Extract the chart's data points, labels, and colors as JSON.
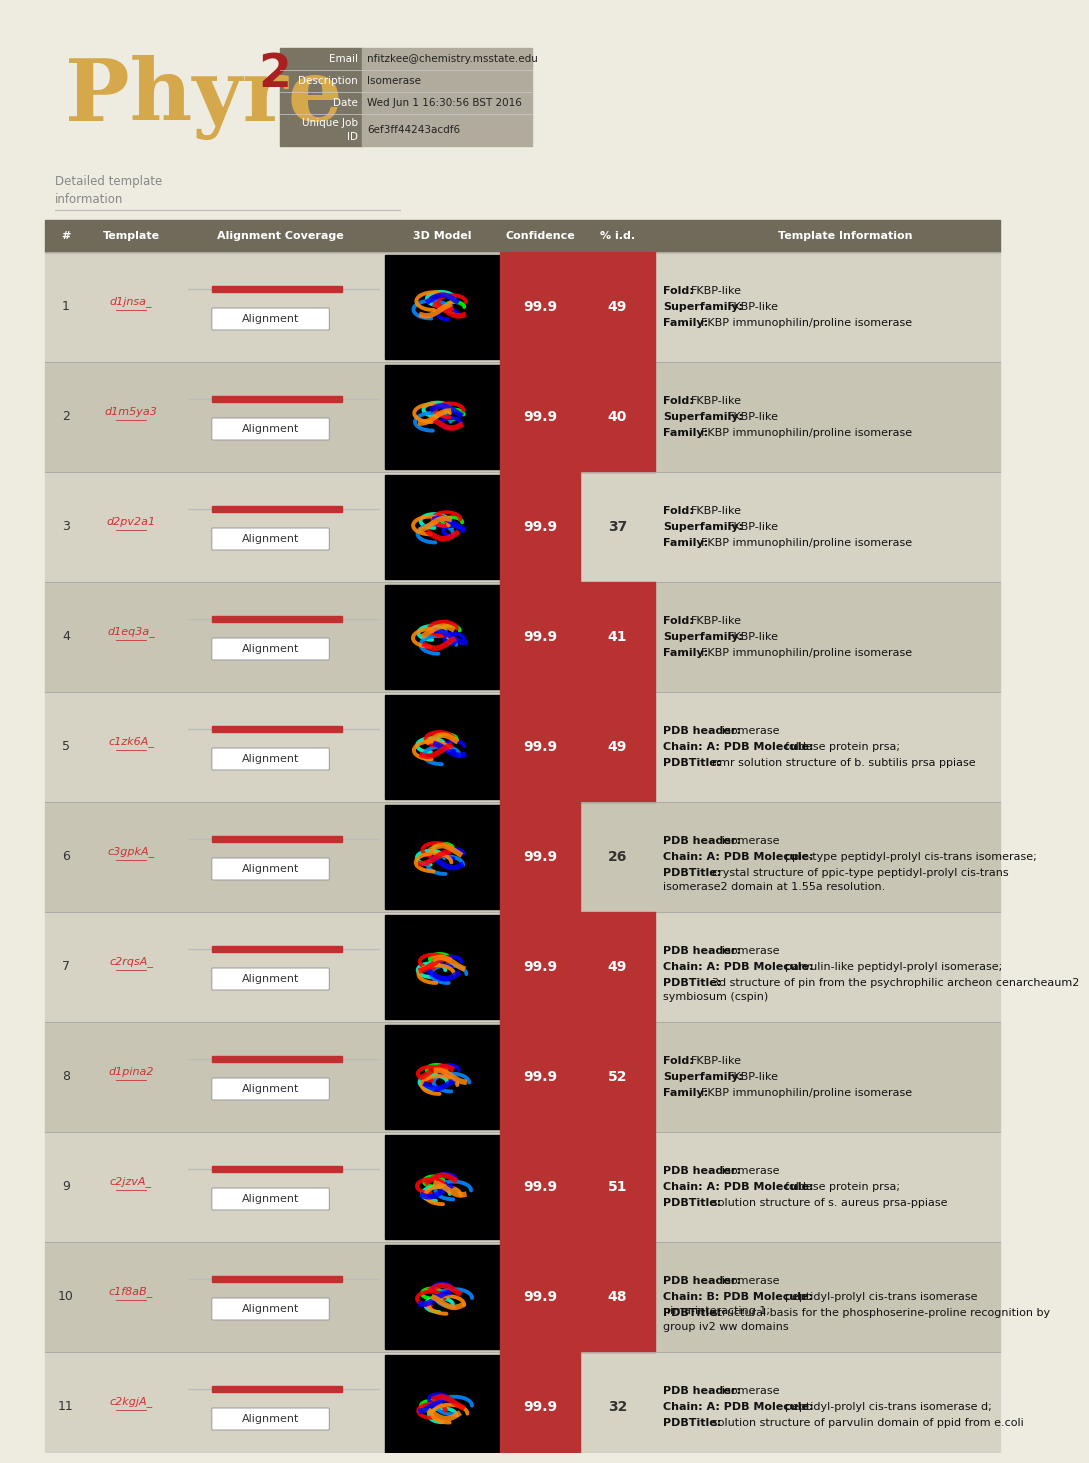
{
  "bg_color": "#eeebe0",
  "header_bg": "#eeebe0",
  "row_bg_odd": "#d6d2c4",
  "row_bg_even": "#c9c5b5",
  "header_row_bg": "#706a5a",
  "confidence_bg": "#b83232",
  "pid_bg_red": "#b83232",
  "phyre_color": "#d4a84b",
  "two_color": "#a82020",
  "info_label_bg": "#7a7465",
  "info_value_bg": "#b0ab9c",
  "email_label": "Email",
  "email_value": "nfitzkee@chemistry.msstate.edu",
  "desc_label": "Description",
  "desc_value": "Isomerase",
  "date_label": "Date",
  "date_value": "Wed Jun 1 16:30:56 BST 2016",
  "job_value": "6ef3ff44243acdf6",
  "col_headers": [
    "#",
    "Template",
    "Alignment Coverage",
    "3D Model",
    "Confidence",
    "% i.d.",
    "Template Information"
  ],
  "rows": [
    {
      "num": "1",
      "template": "d1jnsa_",
      "confidence": "99.9",
      "pid": "49",
      "pid_red": true,
      "info_lines": [
        {
          "label": "Fold:",
          "text": "FKBP-like"
        },
        {
          "label": "Superfamily:",
          "text": "FKBP-like"
        },
        {
          "label": "Family:",
          "text": "FKBP immunophilin/proline isomerase"
        }
      ]
    },
    {
      "num": "2",
      "template": "d1m5ya3",
      "confidence": "99.9",
      "pid": "40",
      "pid_red": true,
      "info_lines": [
        {
          "label": "Fold:",
          "text": "FKBP-like"
        },
        {
          "label": "Superfamily:",
          "text": "FKBP-like"
        },
        {
          "label": "Family:",
          "text": "FKBP immunophilin/proline isomerase"
        }
      ]
    },
    {
      "num": "3",
      "template": "d2pv2a1",
      "confidence": "99.9",
      "pid": "37",
      "pid_red": false,
      "info_lines": [
        {
          "label": "Fold:",
          "text": "FKBP-like"
        },
        {
          "label": "Superfamily:",
          "text": "FKBP-like"
        },
        {
          "label": "Family:",
          "text": "FKBP immunophilin/proline isomerase"
        }
      ]
    },
    {
      "num": "4",
      "template": "d1eq3a_",
      "confidence": "99.9",
      "pid": "41",
      "pid_red": true,
      "info_lines": [
        {
          "label": "Fold:",
          "text": "FKBP-like"
        },
        {
          "label": "Superfamily:",
          "text": "FKBP-like"
        },
        {
          "label": "Family:",
          "text": "FKBP immunophilin/proline isomerase"
        }
      ]
    },
    {
      "num": "5",
      "template": "c1zk6A_",
      "confidence": "99.9",
      "pid": "49",
      "pid_red": true,
      "info_lines": [
        {
          "label": "PDB header:",
          "text": "isomerase"
        },
        {
          "label": "Chain: A: PDB Molecule:",
          "text": "foldase protein prsa;"
        },
        {
          "label": "PDBTitle:",
          "text": "nmr solution structure of b. subtilis prsa ppiase"
        }
      ]
    },
    {
      "num": "6",
      "template": "c3gpkA_",
      "confidence": "99.9",
      "pid": "26",
      "pid_red": false,
      "info_lines": [
        {
          "label": "PDB header:",
          "text": "isomerase"
        },
        {
          "label": "Chain: A: PDB Molecule:",
          "text": "ppic-type peptidyl-prolyl cis-trans isomerase;"
        },
        {
          "label": "PDBTitle:",
          "text": "crystal structure of ppic-type peptidyl-prolyl cis-trans isomerase2 domain at 1.55a resolution."
        }
      ]
    },
    {
      "num": "7",
      "template": "c2rqsA_",
      "confidence": "99.9",
      "pid": "49",
      "pid_red": true,
      "info_lines": [
        {
          "label": "PDB header:",
          "text": "isomerase"
        },
        {
          "label": "Chain: A: PDB Molecule:",
          "text": "parvulin-like peptidyl-prolyl isomerase;"
        },
        {
          "label": "PDBTitle:",
          "text": "3d structure of pin from the psychrophilic archeon cenarcheaum2 symbiosum (cspin)"
        }
      ]
    },
    {
      "num": "8",
      "template": "d1pina2",
      "confidence": "99.9",
      "pid": "52",
      "pid_red": true,
      "info_lines": [
        {
          "label": "Fold:",
          "text": "FKBP-like"
        },
        {
          "label": "Superfamily:",
          "text": "FKBP-like"
        },
        {
          "label": "Family:",
          "text": "FKBP immunophilin/proline isomerase"
        }
      ]
    },
    {
      "num": "9",
      "template": "c2jzvA_",
      "confidence": "99.9",
      "pid": "51",
      "pid_red": true,
      "info_lines": [
        {
          "label": "PDB header:",
          "text": "isomerase"
        },
        {
          "label": "Chain: A: PDB Molecule:",
          "text": "foldase protein prsa;"
        },
        {
          "label": "PDBTitle:",
          "text": "solution structure of s. aureus prsa-ppiase"
        }
      ]
    },
    {
      "num": "10",
      "template": "c1f8aB_",
      "confidence": "99.9",
      "pid": "48",
      "pid_red": true,
      "info_lines": [
        {
          "label": "PDB header:",
          "text": "isomerase"
        },
        {
          "label": "Chain: B: PDB Molecule:",
          "text": "peptidyl-prolyl cis-trans isomerase nima-interacting 1;"
        },
        {
          "label": "PDBTitle:",
          "text": "structural basis for the phosphoserine-proline recognition by group iv2 ww domains"
        }
      ]
    },
    {
      "num": "11",
      "template": "c2kgjA_",
      "confidence": "99.9",
      "pid": "32",
      "pid_red": false,
      "info_lines": [
        {
          "label": "PDB header:",
          "text": "isomerase"
        },
        {
          "label": "Chain: A: PDB Molecule:",
          "text": "peptidyl-prolyl cis-trans isomerase d;"
        },
        {
          "label": "PDBTitle:",
          "text": "solution structure of parvulin domain of ppid from e.coli"
        }
      ]
    }
  ]
}
